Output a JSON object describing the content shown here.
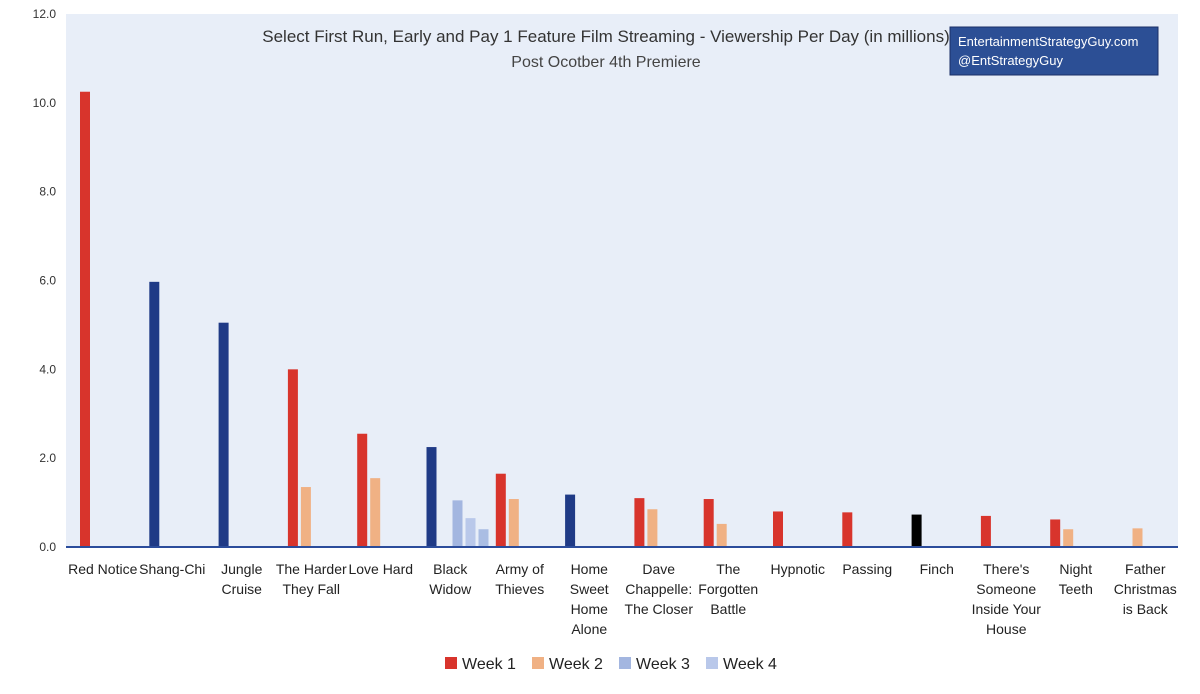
{
  "chart_data": {
    "type": "bar",
    "title": "Select First Run, Early and Pay 1 Feature Film Streaming - Viewership Per Day (in millions)",
    "subtitle": "Post Ocotber 4th Premiere",
    "watermark": [
      "EntertainmentStrategyGuy.com",
      "@EntStrategyGuy"
    ],
    "ylim": [
      0,
      12
    ],
    "yticks": [
      "0.0",
      "2.0",
      "4.0",
      "6.0",
      "8.0",
      "10.0",
      "12.0"
    ],
    "ytick_values": [
      0,
      2,
      4,
      6,
      8,
      10,
      12
    ],
    "grid": false,
    "legend_position": "bottom",
    "categories": [
      [
        "Red Notice"
      ],
      [
        "Shang-Chi"
      ],
      [
        "Jungle",
        "Cruise"
      ],
      [
        "The Harder",
        "They Fall"
      ],
      [
        "Love Hard"
      ],
      [
        "Black",
        "Widow"
      ],
      [
        "Army of",
        "Thieves"
      ],
      [
        "Home",
        "Sweet",
        "Home",
        "Alone"
      ],
      [
        "Dave",
        "Chappelle:",
        "The Closer"
      ],
      [
        "The",
        "Forgotten",
        "Battle"
      ],
      [
        "Hypnotic"
      ],
      [
        "Passing"
      ],
      [
        "Finch"
      ],
      [
        "There's",
        "Someone",
        "Inside Your",
        "House"
      ],
      [
        "Night",
        "Teeth"
      ],
      [
        "Father",
        "Christmas",
        "is Back"
      ]
    ],
    "series": [
      {
        "name": "Week 1",
        "values": [
          10.25,
          null,
          null,
          4.0,
          2.55,
          null,
          1.65,
          null,
          1.1,
          1.08,
          0.8,
          0.78,
          null,
          0.7,
          0.62,
          null
        ]
      },
      {
        "name": "Week 2",
        "values": [
          null,
          null,
          null,
          1.35,
          1.55,
          null,
          1.08,
          null,
          0.85,
          0.52,
          null,
          null,
          null,
          null,
          0.4,
          0.42
        ]
      },
      {
        "name": "Week 3",
        "values": [
          null,
          null,
          null,
          null,
          null,
          1.05,
          null,
          null,
          null,
          null,
          null,
          null,
          null,
          null,
          null,
          null
        ]
      },
      {
        "name": "Week 4",
        "values": [
          null,
          null,
          null,
          null,
          null,
          0.65,
          null,
          null,
          null,
          null,
          null,
          null,
          null,
          null,
          null,
          null
        ]
      }
    ],
    "extra_bars": [
      {
        "category_index": 1,
        "slot": 0,
        "value": 5.97,
        "color": "#1f3a86"
      },
      {
        "category_index": 2,
        "slot": 0,
        "value": 5.05,
        "color": "#1f3a86"
      },
      {
        "category_index": 5,
        "slot": 0,
        "value": 2.25,
        "color": "#1f3a86"
      },
      {
        "category_index": 5,
        "slot": 4,
        "value": 0.4,
        "color": "#aabde3"
      },
      {
        "category_index": 7,
        "slot": 0,
        "value": 1.18,
        "color": "#1f3a86"
      },
      {
        "category_index": 12,
        "slot": 0,
        "value": 0.73,
        "color": "#000000"
      }
    ],
    "colors": {
      "week1": "#d8342c",
      "week2": "#f0b184",
      "week3": "#a3b6e0",
      "week4": "#b9c8ea",
      "plot_bg": "#e8eef8",
      "axis": "#2b4c9b",
      "watermark_bg": "#2c4f95"
    }
  }
}
